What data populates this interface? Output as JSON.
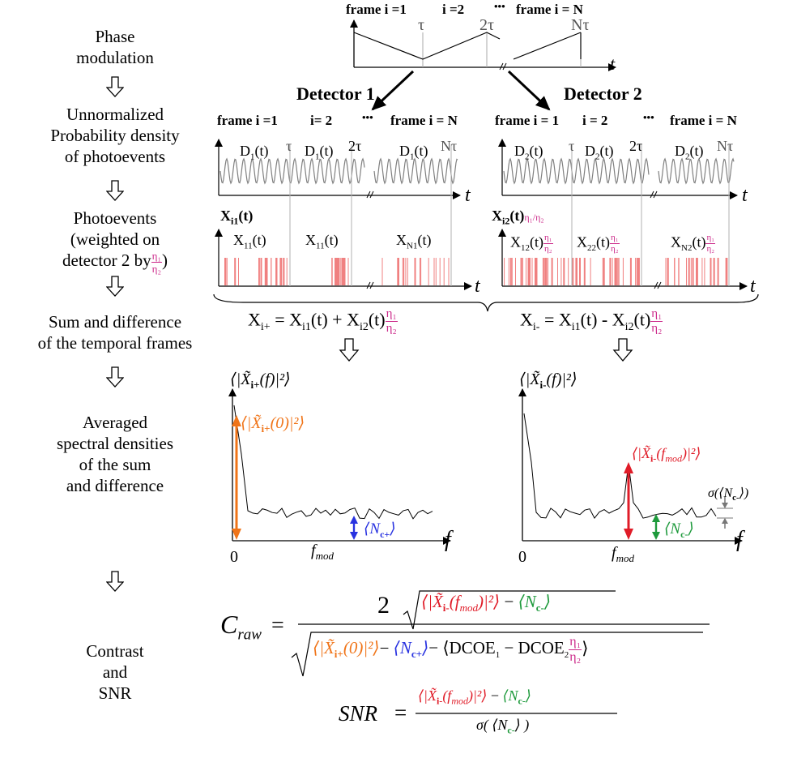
{
  "steps": {
    "phase": [
      "Phase",
      "modulation"
    ],
    "density": [
      "Unnormalized",
      "Probability density",
      "of photoevents"
    ],
    "photo": [
      "Photoevents",
      "(weighted on",
      "detector 2 by"
    ],
    "sum": [
      "Sum and difference",
      "of the temporal frames"
    ],
    "spectral": [
      "Averaged",
      "spectral densities",
      "of the sum",
      "and difference"
    ],
    "contrast": [
      "Contrast",
      "and",
      "SNR"
    ]
  },
  "phase_plot": {
    "frame_first": "frame i =1",
    "frame_second": "i =2",
    "dots": "•••",
    "frame_last": "frame i = N",
    "tau": "τ",
    "two_tau": "2τ",
    "n_tau": "Nτ",
    "t": "t"
  },
  "detectors": {
    "d1": "Detector 1",
    "d2": "Detector 2",
    "d1_frame_first": "frame i =1",
    "d1_frame_second": "i= 2",
    "d1_dots": "•••",
    "d1_frame_last": "frame i = N",
    "d2_frame_first": "frame i = 1",
    "d2_frame_second": "i = 2",
    "d2_dots": "•••",
    "d2_frame_last": "frame i = N"
  },
  "density_plot": {
    "d1_a": "D",
    "d1_sub": "1",
    "d_t": "(t)",
    "d2_sub": "2",
    "tau": "τ",
    "two_tau": "2τ",
    "n_tau": "Nτ",
    "t": "t"
  },
  "events": {
    "x1_label": "X",
    "x1_sub": "i1",
    "x1_arg": "(t)",
    "x2_label": "X",
    "x2_sub": "i2",
    "x2_arg": "(t)",
    "x11": "X",
    "x11_sub": "11",
    "xn1_sub": "N1",
    "x12_sub": "12",
    "x22_sub": "22",
    "xn2_sub": "N2",
    "arg": "(t)",
    "eta1": "η₁",
    "eta2": "η₂",
    "eta_slash": "η₁/η₂",
    "t": "t"
  },
  "sumdiff": {
    "plus_lhs": "X",
    "plus_sub": "i+",
    "plus_rhs": " = X",
    "i1": "i1",
    "plus_mid": "(t) + X",
    "i2": "i2",
    "tail": "(t)",
    "minus_lhs": "X",
    "minus_sub": "i-",
    "minus_rhs": " = X",
    "minus_mid": "(t) - X"
  },
  "spectra": {
    "left_axis": "⟨|X̃",
    "left_axis_sub": "i+",
    "axis_tail": "(f)|²⟩",
    "right_axis_sub": "i-",
    "left_peak": "⟨|X̃",
    "left_peak_sub": "i+",
    "left_peak_tail": "(0)|²⟩",
    "nc_plus": "⟨N",
    "nc_plus_sub": "c+",
    "nc_tail": "⟩",
    "right_peak": "⟨|X̃",
    "right_peak_sub": "i-",
    "right_peak_tail": "(f",
    "fmod_sub": "mod",
    "right_peak_end": ")|²⟩",
    "nc_minus_sub": "c-",
    "sigma": "σ(⟨N",
    "sigma_sub": "c-",
    "sigma_tail": "⟩)",
    "zero": "0",
    "fmod": "f",
    "f": "f"
  },
  "formulas": {
    "craw": "C",
    "craw_sub": "raw",
    "eq": "=",
    "two": "2",
    "num_a": "⟨|X̃",
    "num_sub": "i-",
    "num_b": "(f",
    "num_mod": "mod",
    "num_c": ")|²⟩",
    "minus": " − ",
    "nc": "⟨N",
    "nc_minus": "c-",
    "close": "⟩",
    "den_a": "⟨|X̃",
    "den_sub": "i+",
    "den_b": "(0)|²⟩",
    "den_minus": "− ",
    "nc_plus": "c+",
    "den_dcoe": "− ⟨DCOE",
    "dcoe1": "1",
    "dcoe_mid": " − DCOE",
    "dcoe2": "2",
    "snr": "SNR",
    "sigma": "σ( ⟨N",
    "sigma_tail": "⟩ )"
  },
  "colors": {
    "magenta": "#cc2a8a",
    "orange": "#f07418",
    "blue": "#2832e0",
    "green": "#1e9a3c",
    "red": "#e01c28",
    "event": "#f08080",
    "grid": "#b0b0b0"
  }
}
